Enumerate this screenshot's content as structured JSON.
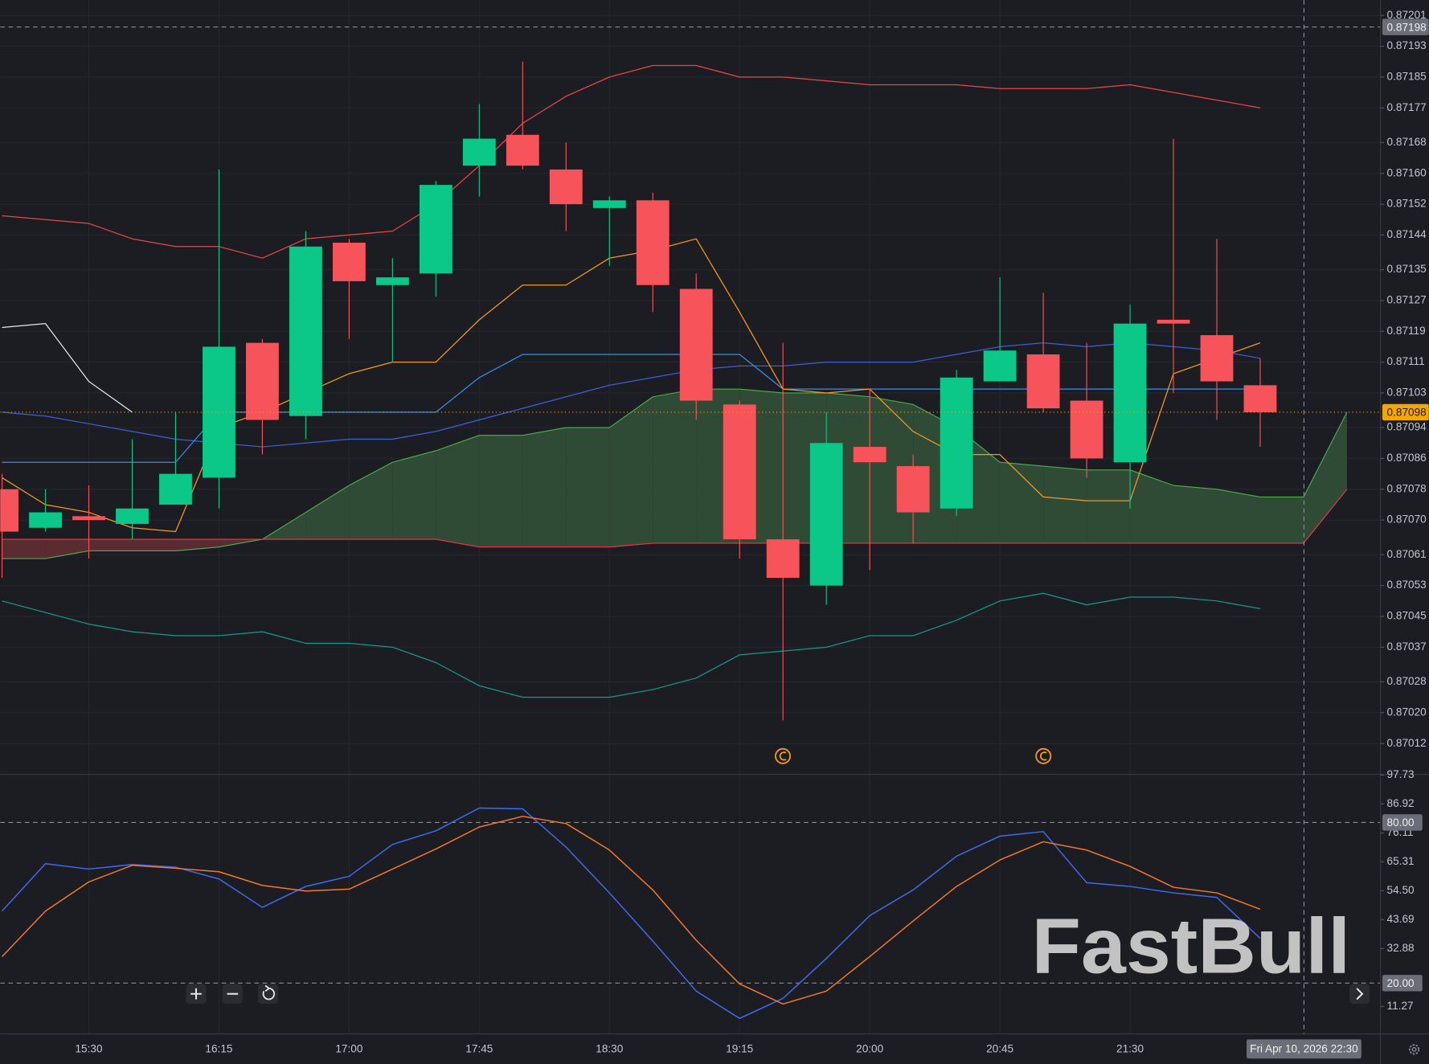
{
  "watermark": "FastBull",
  "chart_data": [
    {
      "type": "candlestick",
      "categories": [
        null,
        null,
        "15:30",
        null,
        null,
        "16:15",
        null,
        null,
        "17:00",
        null,
        null,
        "17:45",
        null,
        null,
        "18:30",
        null,
        null,
        "19:15",
        null,
        null,
        "20:00",
        null,
        null,
        "20:45",
        null,
        null,
        "21:30",
        null,
        null,
        null,
        null,
        null
      ],
      "open": [
        0.87078,
        0.87068,
        0.87071,
        0.87069,
        0.87074,
        0.87081,
        0.87116,
        0.87097,
        0.87142,
        0.87131,
        0.87134,
        0.87162,
        0.8717,
        0.87161,
        0.87151,
        0.87153,
        0.8713,
        0.871,
        0.87065,
        0.87053,
        0.87089,
        0.87084,
        0.87073,
        0.87106,
        0.87113,
        0.87101,
        0.87085,
        0.87122,
        0.87118,
        0.87105,
        null,
        null
      ],
      "high": [
        0.87082,
        0.87078,
        0.87079,
        0.87091,
        0.87098,
        0.87161,
        0.87117,
        0.87145,
        0.87143,
        0.87138,
        0.87158,
        0.87178,
        0.87189,
        0.87168,
        0.87154,
        0.87155,
        0.87134,
        0.87101,
        0.87116,
        0.87098,
        0.87104,
        0.87087,
        0.87109,
        0.87133,
        0.87129,
        0.87116,
        0.87126,
        0.87169,
        0.87143,
        0.87112,
        null,
        null
      ],
      "low": [
        0.87055,
        0.87067,
        0.8706,
        0.87065,
        0.87074,
        0.87073,
        0.87087,
        0.87091,
        0.87117,
        0.87111,
        0.87128,
        0.87154,
        0.87161,
        0.87145,
        0.87136,
        0.87124,
        0.87096,
        0.8706,
        0.87018,
        0.87048,
        0.87057,
        0.87064,
        0.87071,
        0.87106,
        0.87098,
        0.87081,
        0.87073,
        0.87103,
        0.87096,
        0.87089,
        null,
        null
      ],
      "close": [
        0.87067,
        0.87072,
        0.8707,
        0.87073,
        0.87082,
        0.87115,
        0.87096,
        0.87141,
        0.87132,
        0.87133,
        0.87157,
        0.87169,
        0.87162,
        0.87152,
        0.87153,
        0.87131,
        0.87101,
        0.87065,
        0.87055,
        0.8709,
        0.87085,
        0.87072,
        0.87107,
        0.87114,
        0.87099,
        0.87086,
        0.87121,
        0.87121,
        0.87106,
        0.87098,
        null,
        null
      ],
      "up_color": "#0bc788",
      "down_color": "#f6545a",
      "cloud": {
        "span_a": [
          0.8706,
          0.8706,
          0.87062,
          0.87062,
          0.87062,
          0.87063,
          0.87065,
          0.87072,
          0.87079,
          0.87085,
          0.87088,
          0.87092,
          0.87092,
          0.87094,
          0.87094,
          0.87102,
          0.87104,
          0.87104,
          0.87103,
          0.87103,
          0.87102,
          0.871,
          0.87094,
          0.87085,
          0.87084,
          0.87083,
          0.87083,
          0.87079,
          0.87078,
          0.87076,
          0.87076,
          0.87098
        ],
        "span_b": [
          0.87065,
          0.87065,
          0.87065,
          0.87065,
          0.87065,
          0.87065,
          0.87065,
          0.87065,
          0.87065,
          0.87065,
          0.87065,
          0.87063,
          0.87063,
          0.87063,
          0.87063,
          0.87064,
          0.87064,
          0.87064,
          0.87064,
          0.87064,
          0.87064,
          0.87064,
          0.87064,
          0.87064,
          0.87064,
          0.87064,
          0.87064,
          0.87064,
          0.87064,
          0.87064,
          0.87064,
          0.87078
        ],
        "color_a": "#4caf50",
        "color_b": "#f23645",
        "fill_up": "#2f4a35",
        "fill_down": "#5a2b31"
      },
      "lines": [
        {
          "color": "#e8474a",
          "values": [
            0.87149,
            0.87148,
            0.87147,
            0.87143,
            0.87141,
            0.87141,
            0.87138,
            0.87143,
            0.87144,
            0.87145,
            0.87152,
            0.87162,
            0.87173,
            0.8718,
            0.87185,
            0.87188,
            0.87188,
            0.87185,
            0.87185,
            0.87184,
            0.87183,
            0.87183,
            0.87183,
            0.87182,
            0.87182,
            0.87182,
            0.87183,
            0.87181,
            0.87179,
            0.87177,
            null,
            null
          ]
        },
        {
          "color": "#169a8c",
          "values": [
            0.87049,
            0.87046,
            0.87043,
            0.87041,
            0.8704,
            0.8704,
            0.87041,
            0.87038,
            0.87038,
            0.87037,
            0.87033,
            0.87027,
            0.87024,
            0.87024,
            0.87024,
            0.87026,
            0.87029,
            0.87035,
            0.87036,
            0.87037,
            0.8704,
            0.8704,
            0.87044,
            0.87049,
            0.87051,
            0.87048,
            0.8705,
            0.8705,
            0.87049,
            0.87047,
            null,
            null
          ]
        },
        {
          "color": "#3e5fd8",
          "values": [
            0.87098,
            0.87097,
            0.87095,
            0.87093,
            0.87091,
            0.8709,
            0.87089,
            0.8709,
            0.87091,
            0.87091,
            0.87093,
            0.87096,
            0.87099,
            0.87102,
            0.87105,
            0.87107,
            0.87109,
            0.8711,
            0.8711,
            0.87111,
            0.87111,
            0.87111,
            0.87113,
            0.87115,
            0.87116,
            0.87115,
            0.87116,
            0.87115,
            0.87114,
            0.87112,
            null,
            null
          ]
        },
        {
          "color": "#3a8ee6",
          "values": [
            0.87085,
            0.87085,
            0.87085,
            0.87085,
            0.87085,
            0.87098,
            0.87098,
            0.87098,
            0.87098,
            0.87098,
            0.87098,
            0.87107,
            0.87113,
            0.87113,
            0.87113,
            0.87113,
            0.87113,
            0.87113,
            0.87104,
            0.87104,
            0.87104,
            0.87104,
            0.87104,
            0.87104,
            0.87104,
            0.87104,
            0.87104,
            0.87104,
            0.87104,
            0.87104,
            null,
            null
          ]
        },
        {
          "color": "#f59a1c",
          "values": [
            0.87081,
            0.87074,
            0.87072,
            0.87068,
            0.87067,
            0.87094,
            0.87098,
            0.87103,
            0.87108,
            0.87111,
            0.87111,
            0.87122,
            0.87131,
            0.87131,
            0.87138,
            0.8714,
            0.87143,
            0.87124,
            0.87104,
            0.87103,
            0.87104,
            0.87093,
            0.87087,
            0.87087,
            0.87076,
            0.87075,
            0.87075,
            0.87108,
            0.87112,
            0.87116,
            null,
            null
          ]
        },
        {
          "color": "#e6e6e6",
          "values": [
            0.8712,
            0.87121,
            0.87106,
            0.87098,
            null,
            null,
            null,
            null,
            null,
            null,
            null,
            null,
            null,
            null,
            null,
            null,
            null,
            null,
            null,
            null,
            null,
            null,
            null,
            null,
            null,
            null,
            null,
            null,
            null,
            null,
            null,
            null
          ]
        }
      ],
      "ylim": [
        0.87004,
        0.87205
      ],
      "yticks": [
        0.87201,
        0.87193,
        0.87185,
        0.87177,
        0.87168,
        {
          "value": 0.8716,
          "label": "0.87160"
        },
        0.87152,
        0.87144,
        0.87135,
        0.87127,
        0.87119,
        0.87111,
        0.87103,
        0.87094,
        0.87086,
        0.87078,
        {
          "value": 0.8707,
          "label": "0.87070"
        },
        0.87061,
        0.87053,
        0.87045,
        0.87037,
        0.87028,
        {
          "value": 0.8702,
          "label": "0.87020"
        },
        0.87012
      ],
      "grid": true,
      "last_price": 0.87098,
      "last_price_color": "#f7a600",
      "crosshair_price": 0.87198,
      "crosshair_time": "Fri Apr 10, 2026 22:30"
    },
    {
      "type": "line",
      "series": [
        {
          "color": "#3f6cf0",
          "values": [
            46.9,
            64.6,
            62.6,
            64.3,
            63.3,
            58.9,
            48.3,
            56.1,
            59.9,
            71.8,
            76.9,
            85.4,
            85.1,
            70.8,
            53.7,
            35.7,
            17.0,
            6.8,
            14.3,
            29.2,
            45.2,
            54.8,
            67.4,
            74.9,
            76.6,
            57.5,
            56.1,
            53.7,
            52.0,
            36.7,
            null,
            null
          ]
        },
        {
          "color": "#f5782a",
          "values": [
            29.9,
            46.9,
            57.8,
            64.0,
            62.9,
            61.6,
            56.5,
            54.4,
            55.1,
            62.6,
            70.1,
            78.3,
            82.3,
            79.6,
            69.7,
            54.8,
            36.0,
            19.7,
            12.2,
            17.0,
            29.9,
            43.2,
            56.1,
            66.0,
            72.8,
            69.7,
            63.6,
            55.8,
            53.7,
            47.6,
            null,
            null
          ]
        }
      ],
      "ylim": [
        1,
        98
      ],
      "yticks": [
        97.73,
        86.92,
        76.11,
        65.31,
        {
          "value": 54.5,
          "label": "54.50"
        },
        43.69,
        32.88,
        11.27
      ],
      "levels": [
        {
          "value": 80,
          "label": "80.00"
        },
        {
          "value": 20,
          "label": "20.00"
        }
      ]
    }
  ]
}
